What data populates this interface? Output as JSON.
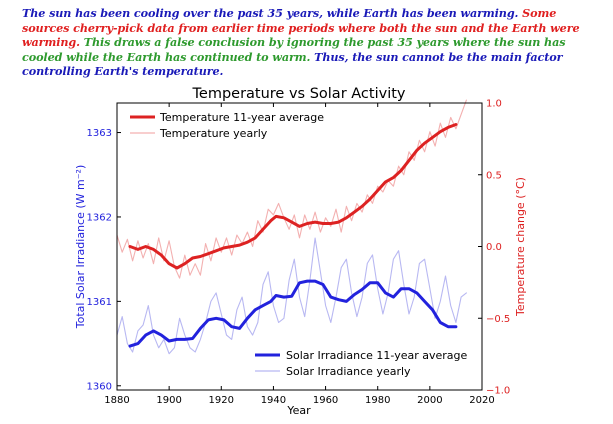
{
  "caption": {
    "part1": "The sun has been cooling over the past 35 years, while Earth has been warming.",
    "part2": "Some sources cherry-pick data from earlier time periods where both the sun and the Earth were warming.",
    "part3": "This draws a false conclusion by ignoring the past 35 years where the sun has cooled while the Earth has continued to warm.",
    "part4": "Thus, the sun cannot be the main factor controlling Earth's temperature."
  },
  "colors": {
    "blue_text": "#1a1ab8",
    "red_text": "#e02020",
    "green_text": "#2e9a2e",
    "temp_avg": "#dd2222",
    "temp_yearly": "#f3b0b0",
    "tsi_avg": "#2222dd",
    "tsi_yearly": "#b8b8f2"
  },
  "chart_data": {
    "type": "line",
    "title": "Temperature vs Solar Activity",
    "xlabel": "Year",
    "ylabel_left": "Total Solar Irradiance (W m⁻²)",
    "ylabel_right": "Temperature change (°C)",
    "xlim": [
      1880,
      2020
    ],
    "ylim_left": [
      1359.95,
      1363.35
    ],
    "ylim_right": [
      -1.0,
      1.0
    ],
    "x_ticks": [
      "1880",
      "1900",
      "1920",
      "1940",
      "1960",
      "1980",
      "2000",
      "2020"
    ],
    "y_left_ticks": [
      "1360",
      "1361",
      "1362",
      "1363"
    ],
    "y_right_ticks": [
      "−1.0",
      "−0.5",
      "0.0",
      "0.5",
      "1.0"
    ],
    "legend_top": [
      "Temperature 11-year average",
      "Temperature yearly"
    ],
    "legend_bottom": [
      "Solar Irradiance 11-year average",
      "Solar Irradiance yearly"
    ],
    "series": [
      {
        "name": "Temperature 11-year average",
        "axis": "right",
        "x": [
          1885,
          1888,
          1891,
          1894,
          1897,
          1900,
          1903,
          1906,
          1909,
          1912,
          1915,
          1918,
          1921,
          1924,
          1927,
          1930,
          1933,
          1936,
          1939,
          1941,
          1944,
          1947,
          1950,
          1953,
          1956,
          1959,
          1962,
          1965,
          1968,
          1971,
          1974,
          1977,
          1980,
          1983,
          1986,
          1989,
          1992,
          1995,
          1998,
          2001,
          2004,
          2007,
          2010
        ],
        "y": [
          0.0,
          -0.02,
          0.0,
          -0.02,
          -0.06,
          -0.12,
          -0.15,
          -0.12,
          -0.08,
          -0.07,
          -0.05,
          -0.03,
          -0.01,
          0.0,
          0.01,
          0.03,
          0.06,
          0.12,
          0.18,
          0.21,
          0.2,
          0.17,
          0.14,
          0.16,
          0.17,
          0.16,
          0.16,
          0.17,
          0.2,
          0.24,
          0.28,
          0.33,
          0.39,
          0.45,
          0.48,
          0.53,
          0.6,
          0.67,
          0.72,
          0.76,
          0.8,
          0.83,
          0.85
        ]
      },
      {
        "name": "Temperature yearly",
        "axis": "right",
        "x": [
          1880,
          1882,
          1884,
          1886,
          1888,
          1890,
          1892,
          1894,
          1896,
          1898,
          1900,
          1902,
          1904,
          1906,
          1908,
          1910,
          1912,
          1914,
          1916,
          1918,
          1920,
          1922,
          1924,
          1926,
          1928,
          1930,
          1932,
          1934,
          1936,
          1938,
          1940,
          1942,
          1944,
          1946,
          1948,
          1950,
          1952,
          1954,
          1956,
          1958,
          1960,
          1962,
          1964,
          1966,
          1968,
          1970,
          1972,
          1974,
          1976,
          1978,
          1980,
          1982,
          1984,
          1986,
          1988,
          1990,
          1992,
          1994,
          1996,
          1998,
          2000,
          2002,
          2004,
          2006,
          2008,
          2010,
          2012,
          2014
        ],
        "y": [
          0.08,
          -0.04,
          0.05,
          -0.1,
          0.04,
          -0.08,
          0.02,
          -0.12,
          0.06,
          -0.1,
          0.04,
          -0.14,
          -0.22,
          -0.06,
          -0.2,
          -0.12,
          -0.2,
          0.02,
          -0.1,
          0.06,
          -0.04,
          0.06,
          -0.06,
          0.08,
          0.02,
          0.1,
          0.0,
          0.18,
          0.1,
          0.26,
          0.22,
          0.3,
          0.2,
          0.12,
          0.22,
          0.06,
          0.22,
          0.12,
          0.24,
          0.1,
          0.2,
          0.14,
          0.26,
          0.1,
          0.28,
          0.18,
          0.3,
          0.24,
          0.36,
          0.3,
          0.42,
          0.38,
          0.46,
          0.42,
          0.56,
          0.5,
          0.66,
          0.6,
          0.74,
          0.66,
          0.8,
          0.7,
          0.86,
          0.76,
          0.9,
          0.82,
          0.92,
          1.02
        ]
      },
      {
        "name": "Solar Irradiance 11-year average",
        "axis": "left",
        "x": [
          1885,
          1888,
          1891,
          1894,
          1897,
          1900,
          1903,
          1906,
          1909,
          1912,
          1915,
          1918,
          1921,
          1924,
          1927,
          1930,
          1933,
          1936,
          1939,
          1941,
          1944,
          1947,
          1950,
          1953,
          1956,
          1959,
          1962,
          1965,
          1968,
          1971,
          1974,
          1977,
          1980,
          1983,
          1986,
          1989,
          1992,
          1995,
          1998,
          2001,
          2004,
          2007,
          2010
        ],
        "y": [
          1360.47,
          1360.5,
          1360.6,
          1360.65,
          1360.6,
          1360.53,
          1360.55,
          1360.55,
          1360.56,
          1360.68,
          1360.78,
          1360.8,
          1360.78,
          1360.7,
          1360.68,
          1360.8,
          1360.9,
          1360.95,
          1361.0,
          1361.07,
          1361.05,
          1361.06,
          1361.22,
          1361.24,
          1361.24,
          1361.2,
          1361.05,
          1361.02,
          1361.0,
          1361.08,
          1361.14,
          1361.22,
          1361.22,
          1361.1,
          1361.05,
          1361.15,
          1361.15,
          1361.1,
          1361.0,
          1360.9,
          1360.75,
          1360.7,
          1360.7
        ]
      },
      {
        "name": "Solar Irradiance yearly",
        "axis": "left",
        "x": [
          1880,
          1882,
          1884,
          1886,
          1888,
          1890,
          1892,
          1894,
          1896,
          1898,
          1900,
          1902,
          1904,
          1906,
          1908,
          1910,
          1912,
          1914,
          1916,
          1918,
          1920,
          1922,
          1924,
          1926,
          1928,
          1930,
          1932,
          1934,
          1936,
          1938,
          1940,
          1942,
          1944,
          1946,
          1948,
          1950,
          1952,
          1954,
          1956,
          1958,
          1960,
          1962,
          1964,
          1966,
          1968,
          1970,
          1972,
          1974,
          1976,
          1978,
          1980,
          1982,
          1984,
          1986,
          1988,
          1990,
          1992,
          1994,
          1996,
          1998,
          2000,
          2002,
          2004,
          2006,
          2008,
          2010,
          2012,
          2014
        ],
        "y": [
          1360.6,
          1360.82,
          1360.5,
          1360.4,
          1360.65,
          1360.72,
          1360.95,
          1360.6,
          1360.45,
          1360.55,
          1360.38,
          1360.45,
          1360.8,
          1360.6,
          1360.45,
          1360.4,
          1360.55,
          1360.75,
          1361.0,
          1361.1,
          1360.85,
          1360.6,
          1360.55,
          1360.9,
          1361.05,
          1360.7,
          1360.6,
          1360.75,
          1361.2,
          1361.35,
          1360.95,
          1360.75,
          1360.8,
          1361.25,
          1361.5,
          1361.05,
          1360.82,
          1361.25,
          1361.75,
          1361.35,
          1360.95,
          1360.75,
          1361.05,
          1361.4,
          1361.5,
          1361.1,
          1360.82,
          1361.05,
          1361.45,
          1361.55,
          1361.15,
          1360.85,
          1361.1,
          1361.5,
          1361.6,
          1361.2,
          1360.85,
          1361.05,
          1361.45,
          1361.5,
          1361.15,
          1360.8,
          1361.0,
          1361.3,
          1360.95,
          1360.75,
          1361.05,
          1361.1
        ]
      }
    ]
  }
}
